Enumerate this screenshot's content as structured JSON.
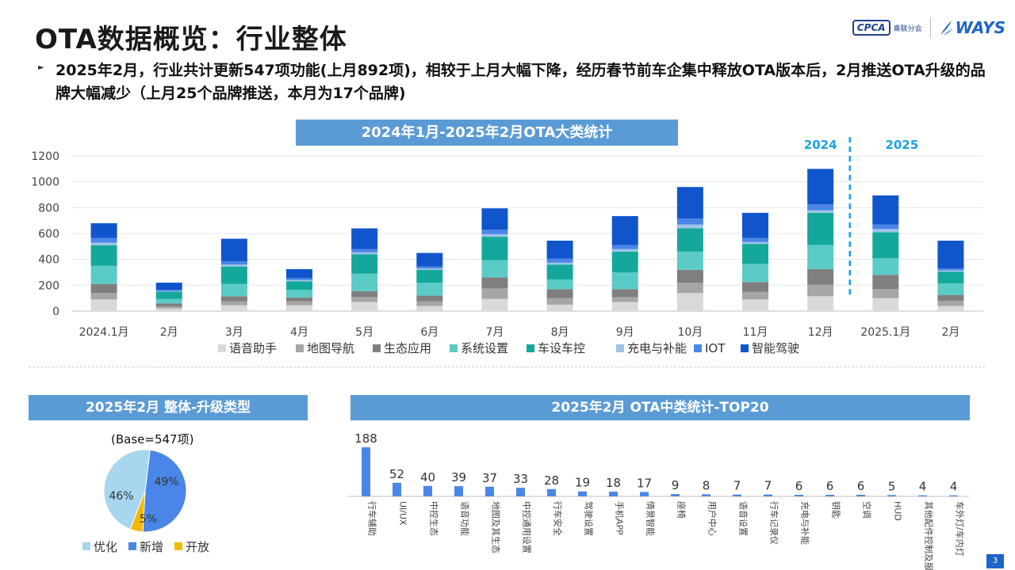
{
  "title": "OTA数据概览：行业整体",
  "logos": {
    "cpca": "CPCA",
    "cpca_sub": "乘联分会",
    "ways": "WAYS"
  },
  "summary": "2025年2月，行业共计更新547项功能(上月892项)，相较于上月大幅下降，经历春节前车企集中释放OTA版本后，2月推送OTA升级的品牌大幅减少（上月25个品牌推送，本月为17个品牌)",
  "page_number": "3",
  "colors": {
    "banner": "#5b9bd5",
    "语音助手": "#d9d9d9",
    "地图导航": "#a6a6a6",
    "生态应用": "#7f7f7f",
    "系统设置": "#5bcbc5",
    "车设车控": "#14a89c",
    "充电与补能": "#9dc3e6",
    "IOT": "#4a86e8",
    "智能驾驶": "#1155cc",
    "year_label": "#1ba1e2"
  },
  "chart_data": [
    {
      "type": "bar",
      "stacked": true,
      "title": "2024年1月-2025年2月OTA大类统计",
      "categories": [
        "2024.1月",
        "2月",
        "3月",
        "4月",
        "5月",
        "6月",
        "7月",
        "8月",
        "9月",
        "10月",
        "11月",
        "12月",
        "2025.1月",
        "2月"
      ],
      "ylim": [
        0,
        1200
      ],
      "yticks": [
        0,
        200,
        400,
        600,
        800,
        1000,
        1200
      ],
      "grid": true,
      "legend_position": "bottom",
      "year_labels": [
        "2024",
        "2025"
      ],
      "series": [
        {
          "name": "语音助手",
          "values": [
            90,
            20,
            45,
            45,
            70,
            40,
            95,
            50,
            70,
            140,
            90,
            115,
            100,
            40
          ]
        },
        {
          "name": "地图导航",
          "values": [
            50,
            15,
            30,
            30,
            40,
            35,
            80,
            50,
            40,
            80,
            60,
            90,
            70,
            40
          ]
        },
        {
          "name": "生态应用",
          "values": [
            70,
            25,
            40,
            30,
            45,
            45,
            85,
            70,
            60,
            100,
            75,
            120,
            110,
            45
          ]
        },
        {
          "name": "系统设置",
          "values": [
            140,
            35,
            95,
            60,
            135,
            100,
            135,
            75,
            130,
            140,
            140,
            185,
            130,
            90
          ]
        },
        {
          "name": "车设车控",
          "values": [
            160,
            55,
            135,
            65,
            150,
            100,
            180,
            115,
            160,
            180,
            155,
            250,
            200,
            90
          ]
        },
        {
          "name": "充电与补能",
          "values": [
            20,
            5,
            15,
            10,
            15,
            10,
            20,
            15,
            20,
            30,
            15,
            20,
            25,
            10
          ]
        },
        {
          "name": "IOT",
          "values": [
            35,
            10,
            25,
            15,
            25,
            15,
            35,
            30,
            30,
            45,
            30,
            45,
            35,
            15
          ]
        },
        {
          "name": "智能驾驶",
          "values": [
            115,
            55,
            175,
            70,
            160,
            105,
            165,
            140,
            225,
            245,
            195,
            275,
            225,
            215
          ]
        }
      ]
    },
    {
      "type": "pie",
      "title": "2025年2月 整体-升级类型",
      "subtitle": "(Base=547项)",
      "slices": [
        {
          "name": "新增",
          "value": 49,
          "label": "49%",
          "color": "#4a86e8"
        },
        {
          "name": "开放",
          "value": 5,
          "label": "5%",
          "color": "#f5b800"
        },
        {
          "name": "优化",
          "value": 46,
          "label": "46%",
          "color": "#a9d6ef"
        }
      ],
      "legend_order": [
        "优化",
        "新增",
        "开放"
      ],
      "legend_position": "bottom"
    },
    {
      "type": "bar",
      "title": "2025年2月 OTA中类统计-TOP20",
      "categories": [
        "行车辅助",
        "UI/UX",
        "中控生态",
        "语音功能",
        "地图及其生态",
        "中控通用设置",
        "行车安全",
        "驾驶设置",
        "手机APP",
        "情景智能",
        "座椅",
        "用户中心",
        "语音设置",
        "行车记录仪",
        "充电与补能",
        "钥匙",
        "空调",
        "HUD",
        "其他配件控制及服务",
        "车外灯/车内灯"
      ],
      "values": [
        188,
        52,
        40,
        39,
        37,
        33,
        28,
        19,
        18,
        17,
        9,
        8,
        7,
        7,
        6,
        6,
        6,
        5,
        4,
        4
      ],
      "color": "#4a86e8"
    }
  ]
}
